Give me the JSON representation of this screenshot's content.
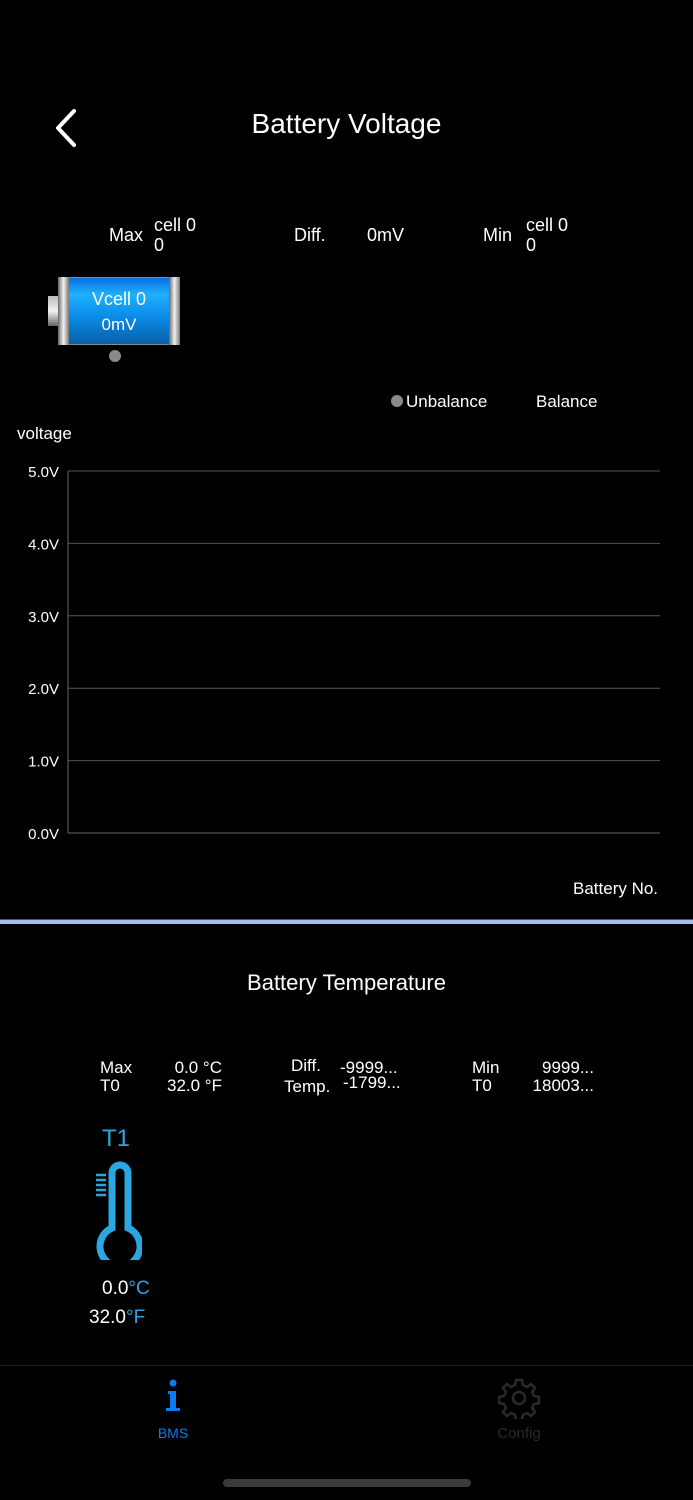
{
  "header": {
    "title": "Battery Voltage",
    "back_icon": "chevron-left-icon"
  },
  "voltage_summary": {
    "max_label": "Max",
    "max_cell": "cell 0",
    "max_value": "0",
    "diff_label": "Diff.",
    "diff_value": "0mV",
    "min_label": "Min",
    "min_cell": "cell 0",
    "min_value": "0"
  },
  "cells": [
    {
      "name": "Vcell 0",
      "voltage": "0mV",
      "balance_state": "unbalance"
    }
  ],
  "legend": {
    "unbalance": "Unbalance",
    "balance": "Balance",
    "unbalance_color": "#8a8a8a"
  },
  "chart_data": {
    "type": "line",
    "ylabel": "voltage",
    "xlabel": "Battery No.",
    "ylim": [
      0,
      5
    ],
    "yticks": [
      "0.0V",
      "1.0V",
      "2.0V",
      "3.0V",
      "4.0V",
      "5.0V"
    ],
    "grid": true,
    "series": []
  },
  "temperature": {
    "title": "Battery Temperature",
    "max_label": "Max",
    "max_sensor": "T0",
    "max_c": "0.0 °C",
    "max_f": "32.0 °F",
    "diff_label": "Diff.",
    "diff_sub": "Temp.",
    "diff_c": "-9999...",
    "diff_f": "-1799...",
    "min_label": "Min",
    "min_sensor": "T0",
    "min_c": "9999...",
    "min_f": "18003...",
    "sensors": [
      {
        "name": "T1",
        "celsius": "0.0",
        "fahrenheit": "32.0",
        "c_unit": "°C",
        "f_unit": "°F"
      }
    ],
    "accent": "#2aa6e0"
  },
  "tabbar": {
    "tabs": [
      {
        "label": "BMS",
        "icon": "info-icon",
        "active": true,
        "color": "#0a7cf0"
      },
      {
        "label": "Config",
        "icon": "gear-icon",
        "active": false,
        "color": "#2a2a2a"
      }
    ]
  }
}
